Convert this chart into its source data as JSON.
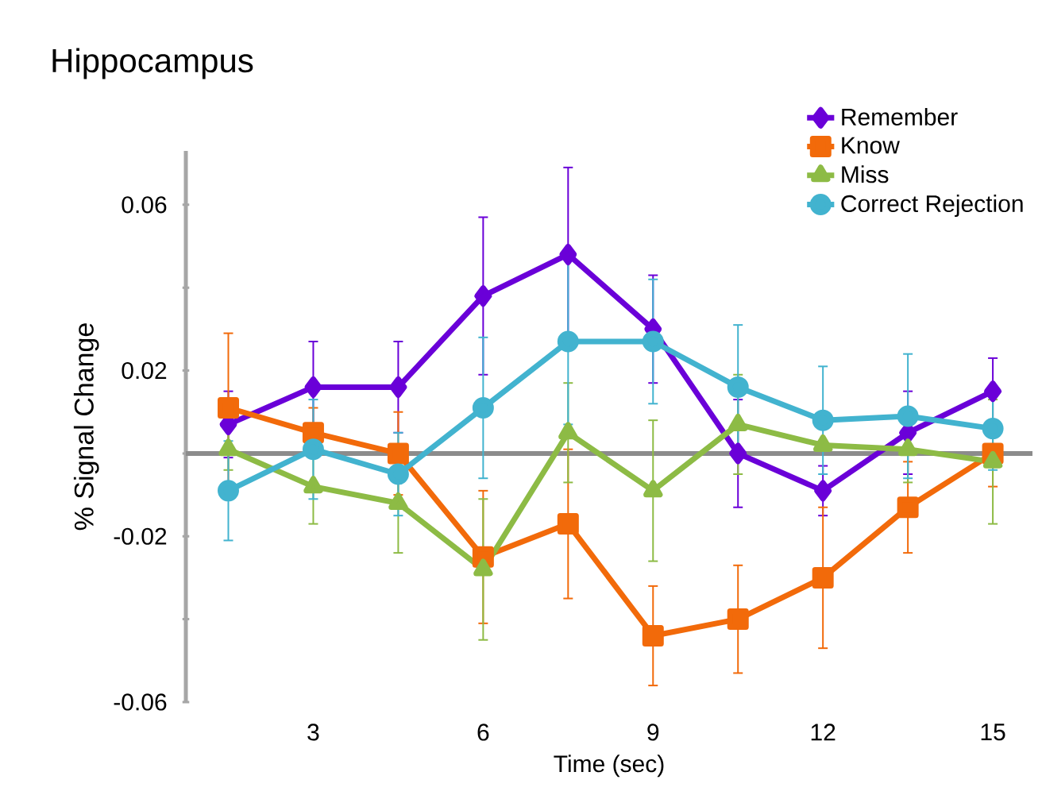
{
  "chart_data": {
    "type": "line",
    "title": "Hippocampus",
    "xlabel": "Time (sec)",
    "ylabel": "% Signal Change",
    "x": [
      1.5,
      3,
      4.5,
      6,
      7.5,
      9,
      10.5,
      12,
      13.5,
      15
    ],
    "series": [
      {
        "name": "Remember",
        "color": "#6a00d8",
        "marker": "diamond",
        "values": [
          0.007,
          0.016,
          0.016,
          0.038,
          0.048,
          0.03,
          0.0,
          -0.009,
          0.005,
          0.015
        ],
        "errors": [
          0.008,
          0.011,
          0.011,
          0.019,
          0.021,
          0.013,
          0.013,
          0.006,
          0.01,
          0.008
        ]
      },
      {
        "name": "Know",
        "color": "#f26a0a",
        "marker": "square",
        "values": [
          0.011,
          0.005,
          0.0,
          -0.025,
          -0.017,
          -0.044,
          -0.04,
          -0.03,
          -0.013,
          0.0
        ],
        "errors": [
          0.018,
          0.006,
          0.01,
          0.016,
          0.018,
          0.012,
          0.013,
          0.017,
          0.011,
          0.008
        ]
      },
      {
        "name": "Miss",
        "color": "#8dbb45",
        "marker": "triangle",
        "values": [
          0.001,
          -0.008,
          -0.012,
          -0.028,
          0.005,
          -0.009,
          0.007,
          0.002,
          0.001,
          -0.002
        ],
        "errors": [
          0.005,
          0.009,
          0.012,
          0.017,
          0.012,
          0.017,
          0.012,
          null,
          0.008,
          0.015
        ]
      },
      {
        "name": "Correct Rejection",
        "color": "#42b3cf",
        "marker": "circle",
        "values": [
          -0.009,
          0.001,
          -0.005,
          0.011,
          0.027,
          0.027,
          0.016,
          0.008,
          0.009,
          0.006
        ],
        "errors": [
          0.012,
          0.012,
          0.01,
          0.017,
          0.02,
          0.015,
          0.015,
          0.013,
          0.015,
          0.01
        ]
      }
    ],
    "xlim": [
      0.75,
      15.7
    ],
    "ylim": [
      -0.06,
      0.073
    ],
    "xticks": [
      3,
      6,
      9,
      12,
      15
    ],
    "yticks": [
      -0.06,
      {
        "value": -0.04,
        "label": null
      },
      -0.02,
      {
        "value": 0,
        "label": null
      },
      0.02,
      {
        "value": 0.04,
        "label": null
      },
      0.06
    ],
    "ref_lines": [
      {
        "axis": "y",
        "value": 0,
        "color": "#8c8c8c"
      }
    ],
    "legend": "top right",
    "grid": false,
    "line_style": "solid"
  }
}
